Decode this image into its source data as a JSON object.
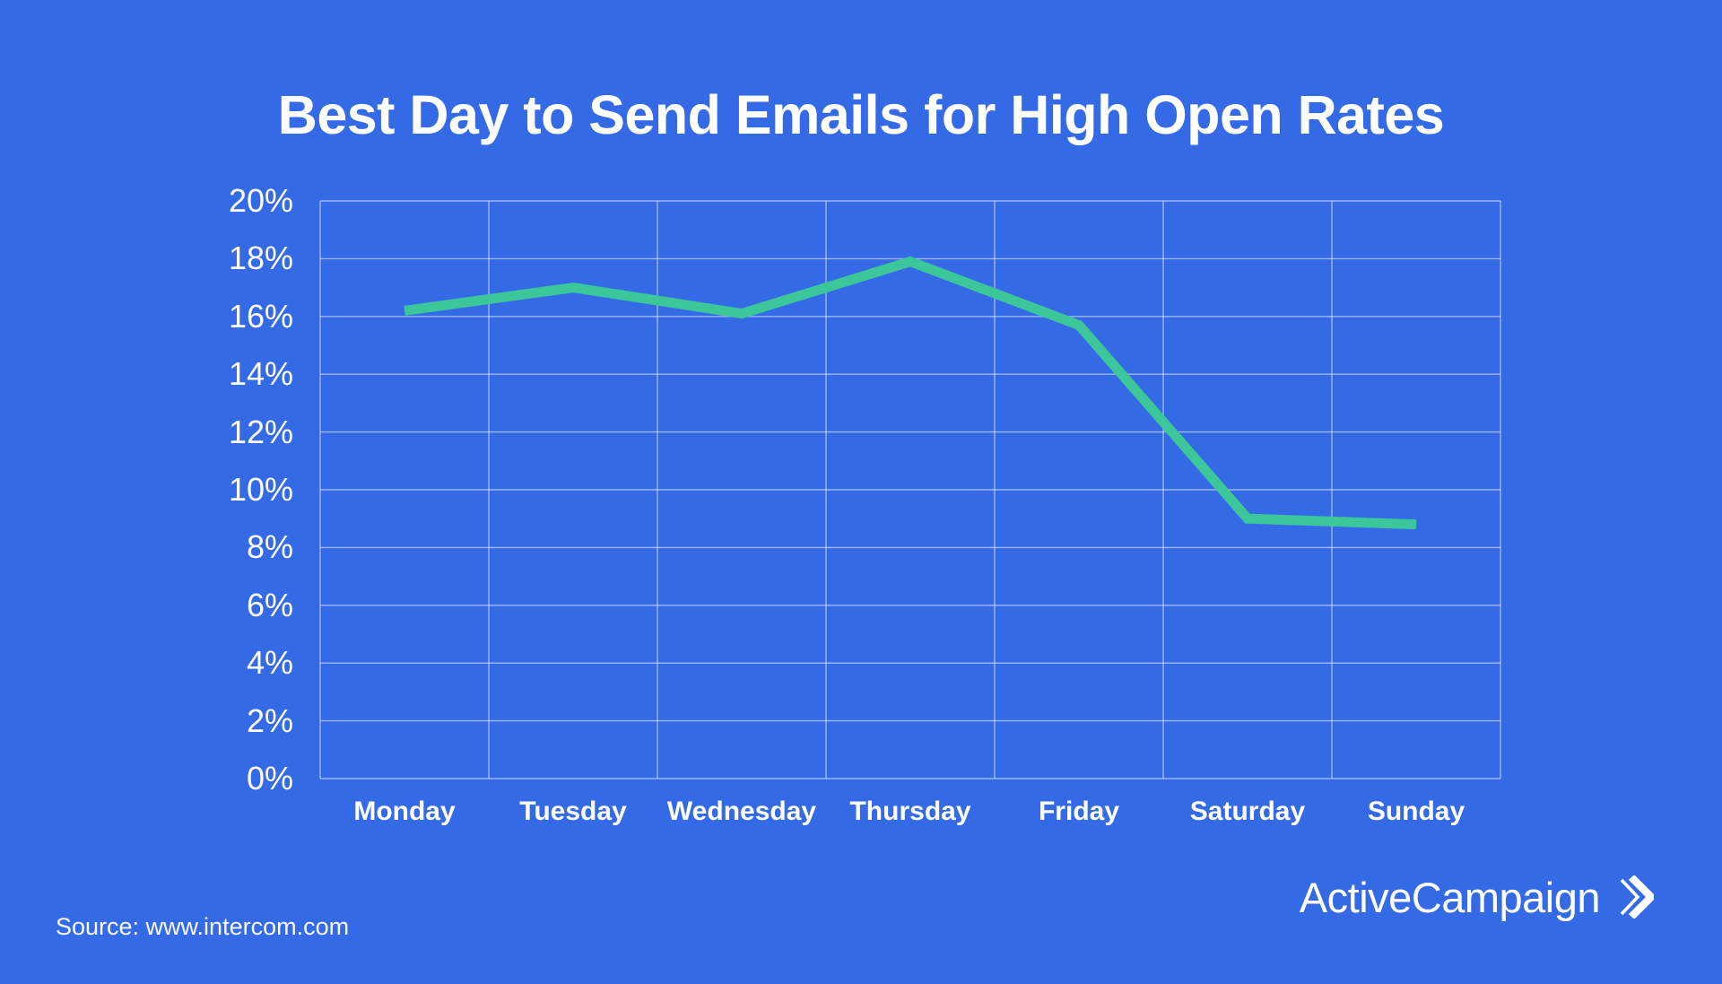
{
  "page": {
    "background_color": "#356AE6",
    "text_color": "#FFFFFF"
  },
  "header": {
    "title": "Best Day to Send Emails for High Open Rates"
  },
  "footer": {
    "source_text": "Source: www.intercom.com",
    "brand_name": "ActiveCampaign",
    "brand_mark_icon": "double-chevron-right"
  },
  "chart_data": {
    "type": "line",
    "title": "Best Day to Send Emails for High Open Rates",
    "categories": [
      "Monday",
      "Tuesday",
      "Wednesday",
      "Thursday",
      "Friday",
      "Saturday",
      "Sunday"
    ],
    "values": [
      16.2,
      17.0,
      16.1,
      17.9,
      15.7,
      9.0,
      8.8
    ],
    "xlabel": "",
    "ylabel": "",
    "ylim": [
      0,
      20
    ],
    "y_tick_step": 2,
    "y_tick_suffix": "%",
    "grid": true,
    "legend": false,
    "line_color": "#3CC79B",
    "line_width": 11,
    "grid_color": "rgba(255,255,255,0.5)"
  }
}
